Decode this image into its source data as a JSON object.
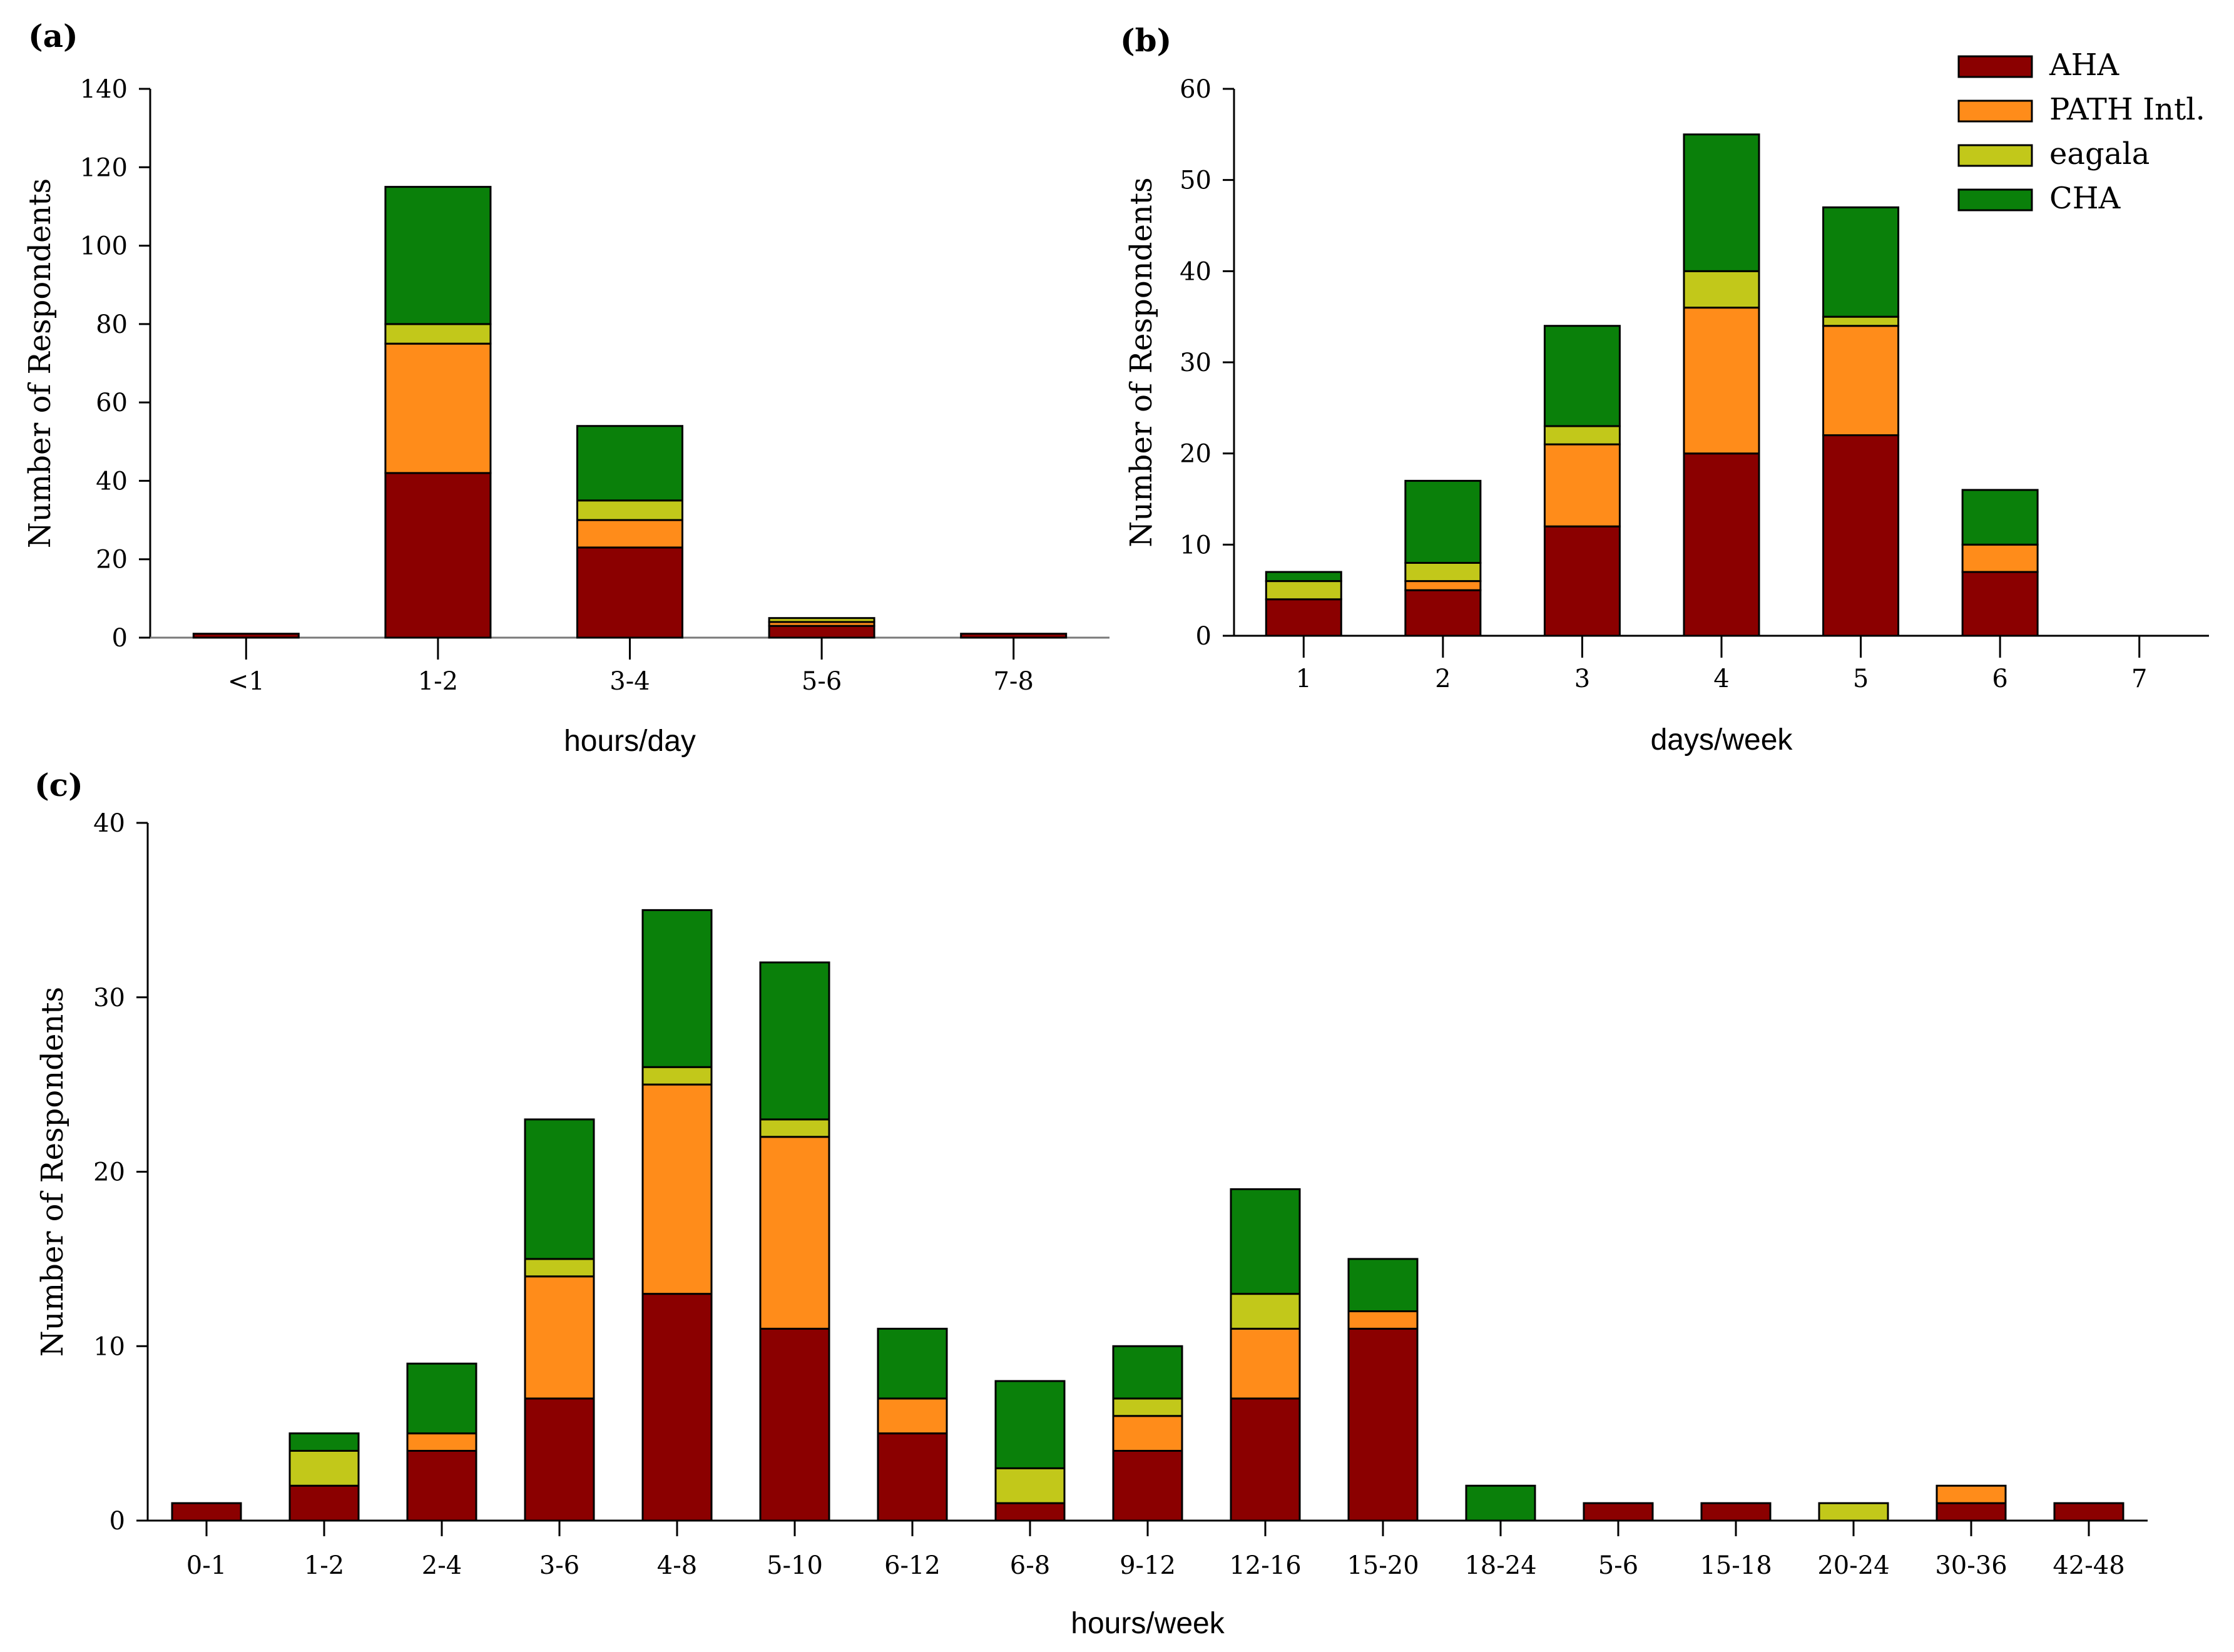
{
  "colors": {
    "AHA": "#8b0000",
    "PATH Intl.": "#ff8c1a",
    "eagala": "#c2c81a",
    "CHA": "#0a800a"
  },
  "legend": {
    "entries": [
      "AHA",
      "PATH Intl.",
      "eagala",
      "CHA"
    ]
  },
  "chart_data": [
    {
      "id": "a",
      "panel_label": "(a)",
      "type": "bar",
      "stacked": true,
      "xlabel": "hours/day",
      "ylabel": "Number of Respondents",
      "ylim": [
        0,
        140
      ],
      "yticks": [
        0,
        20,
        40,
        60,
        80,
        100,
        120,
        140
      ],
      "categories": [
        "<1",
        "1-2",
        "3-4",
        "5-6",
        "7-8"
      ],
      "series": [
        {
          "name": "AHA",
          "values": [
            1,
            42,
            23,
            3,
            1
          ]
        },
        {
          "name": "PATH Intl.",
          "values": [
            0,
            33,
            7,
            1,
            0
          ]
        },
        {
          "name": "eagala",
          "values": [
            0,
            5,
            5,
            1,
            0
          ]
        },
        {
          "name": "CHA",
          "values": [
            0,
            35,
            19,
            0,
            0
          ]
        }
      ]
    },
    {
      "id": "b",
      "panel_label": "(b)",
      "type": "bar",
      "stacked": true,
      "xlabel": "days/week",
      "ylabel": "Number of Respondents",
      "ylim": [
        0,
        60
      ],
      "yticks": [
        0,
        10,
        20,
        30,
        40,
        50,
        60
      ],
      "categories": [
        "1",
        "2",
        "3",
        "4",
        "5",
        "6",
        "7"
      ],
      "series": [
        {
          "name": "AHA",
          "values": [
            4,
            5,
            12,
            20,
            22,
            7,
            0
          ]
        },
        {
          "name": "PATH Intl.",
          "values": [
            0,
            1,
            9,
            16,
            12,
            3,
            0
          ]
        },
        {
          "name": "eagala",
          "values": [
            2,
            2,
            2,
            4,
            1,
            0,
            0
          ]
        },
        {
          "name": "CHA",
          "values": [
            1,
            9,
            11,
            15,
            12,
            6,
            0
          ]
        }
      ]
    },
    {
      "id": "c",
      "panel_label": "(c)",
      "type": "bar",
      "stacked": true,
      "xlabel": "hours/week",
      "ylabel": "Number of Respondents",
      "ylim": [
        0,
        40
      ],
      "yticks": [
        0,
        10,
        20,
        30,
        40
      ],
      "categories": [
        "0-1",
        "1-2",
        "2-4",
        "3-6",
        "4-8",
        "5-10",
        "6-12",
        "6-8",
        "9-12",
        "12-16",
        "15-20",
        "18-24",
        "5-6",
        "15-18",
        "20-24",
        "30-36",
        "42-48"
      ],
      "series": [
        {
          "name": "AHA",
          "values": [
            1,
            2,
            4,
            7,
            13,
            11,
            5,
            1,
            4,
            7,
            11,
            0,
            1,
            1,
            0,
            1,
            1
          ]
        },
        {
          "name": "PATH Intl.",
          "values": [
            0,
            0,
            1,
            7,
            12,
            11,
            2,
            0,
            2,
            4,
            1,
            0,
            0,
            0,
            0,
            1,
            0
          ]
        },
        {
          "name": "eagala",
          "values": [
            0,
            2,
            0,
            1,
            1,
            1,
            0,
            2,
            1,
            2,
            0,
            0,
            0,
            0,
            1,
            0,
            0
          ]
        },
        {
          "name": "CHA",
          "values": [
            0,
            1,
            4,
            8,
            9,
            9,
            4,
            5,
            3,
            6,
            3,
            2,
            0,
            0,
            0,
            0,
            0
          ]
        }
      ]
    }
  ]
}
